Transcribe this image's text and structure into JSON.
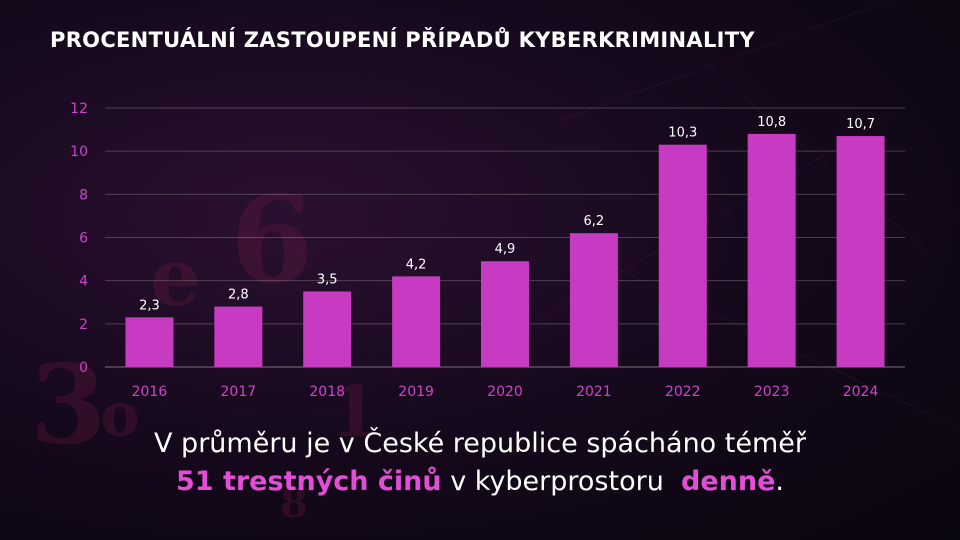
{
  "title": "PROCENTUÁLNÍ ZASTOUPENÍ PŘÍPADŮ KYBERKRIMINALITY",
  "caption": {
    "line1": "V průměru je v České republice spácháno téměř",
    "highlight1": "51 trestných činů",
    "middle": " v kyberprostoru  ",
    "highlight2": "denně",
    "end": "."
  },
  "colors": {
    "bar": "#c73ac2",
    "axis_text": "#cc44c8",
    "data_label": "#ffffff",
    "highlight": "#e24fd6"
  },
  "chart_data": {
    "type": "bar",
    "categories": [
      "2016",
      "2017",
      "2018",
      "2019",
      "2020",
      "2021",
      "2022",
      "2023",
      "2024"
    ],
    "values": [
      2.3,
      2.8,
      3.5,
      4.2,
      4.9,
      6.2,
      10.3,
      10.8,
      10.7
    ],
    "data_labels": [
      "2,3",
      "2,8",
      "3,5",
      "4,2",
      "4,9",
      "6,2",
      "10,3",
      "10,8",
      "10,7"
    ],
    "y_ticks": [
      "0",
      "2",
      "4",
      "6",
      "8",
      "10",
      "12"
    ],
    "ylim": [
      0,
      12
    ],
    "grid": true,
    "title": "PROCENTUÁLNÍ ZASTOUPENÍ PŘÍPADŮ KYBERKRIMINALITY",
    "xlabel": "",
    "ylabel": ""
  }
}
